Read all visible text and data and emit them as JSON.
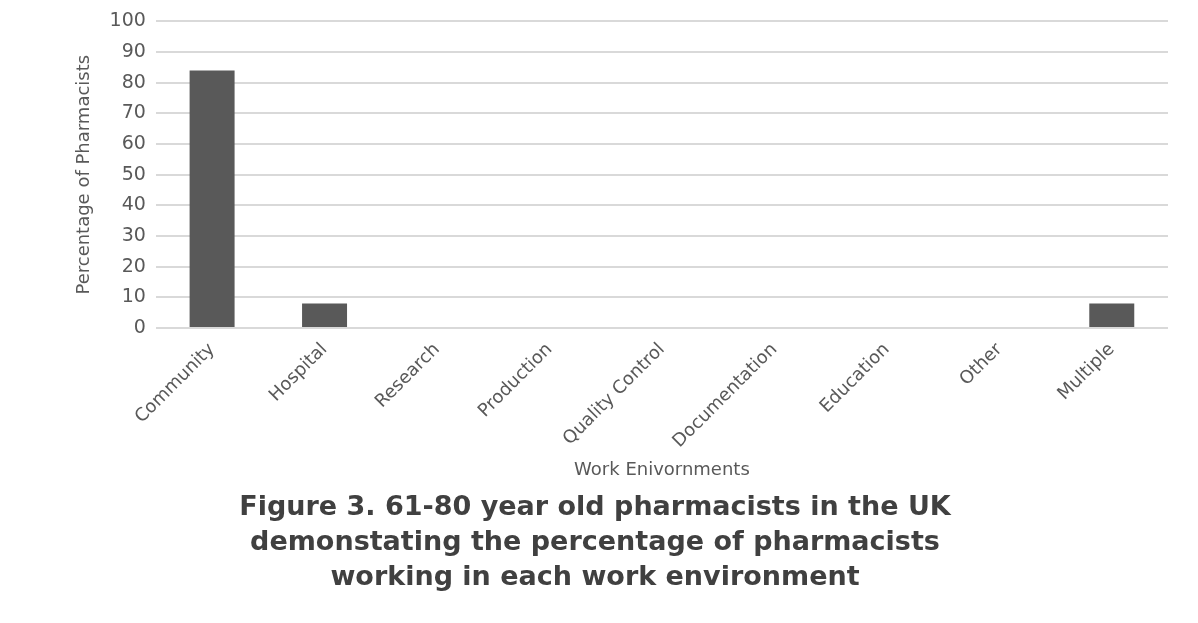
{
  "chart_data": {
    "type": "bar",
    "title": "Figure 3. 61-80 year old pharmacists in the UK demonstating the percentage of pharmacists working in each work environment",
    "xlabel": "Work Enivornments",
    "ylabel": "Percentage of Pharmacists",
    "categories": [
      "Community",
      "Hospital",
      "Research",
      "Production",
      "Quality Control",
      "Documentation",
      "Education",
      "Other",
      "Multiple"
    ],
    "values": [
      84,
      8,
      0,
      0,
      0,
      0,
      0,
      0,
      8
    ],
    "color": "#595959",
    "ylim": [
      0,
      100
    ],
    "yticks": [
      0,
      10,
      20,
      30,
      40,
      50,
      60,
      70,
      80,
      90,
      100
    ],
    "grid": "y",
    "legend": false
  }
}
